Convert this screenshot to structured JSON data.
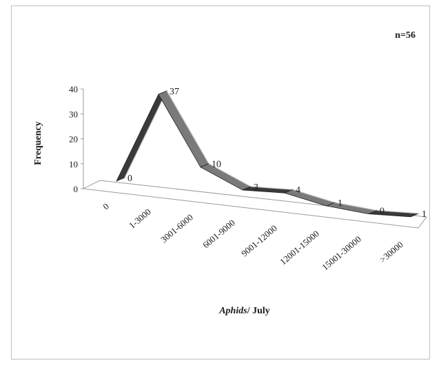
{
  "chart_data": {
    "type": "line",
    "style": "3d-ribbon",
    "categories": [
      "0",
      "1-3000",
      "3001-6000",
      "6001-9000",
      "9001-12000",
      "12001-15000",
      "15001-30000",
      ">30000"
    ],
    "values": [
      0,
      37,
      10,
      3,
      4,
      1,
      0,
      1
    ],
    "data_labels": [
      "0",
      "37",
      "10",
      "3",
      "4",
      "1",
      "0",
      "1"
    ],
    "ylabel": "Frequency",
    "xlabel_italic": "Aphids",
    "xlabel_rest": "/ July",
    "annotation": "n=56",
    "ylim": [
      0,
      40
    ],
    "yticks": [
      0,
      10,
      20,
      30,
      40
    ],
    "ytick_labels": [
      "0",
      "10",
      "20",
      "30",
      "40"
    ],
    "grid": false,
    "legend": "none",
    "colors": {
      "ribbon_dark": "#3a3a3a",
      "ribbon_mid": "#7a7a7a",
      "ribbon_light": "#c8c8c8",
      "axis": "#9a9a9a",
      "text": "#1a1a1a",
      "frame": "#bfbfbf"
    }
  }
}
